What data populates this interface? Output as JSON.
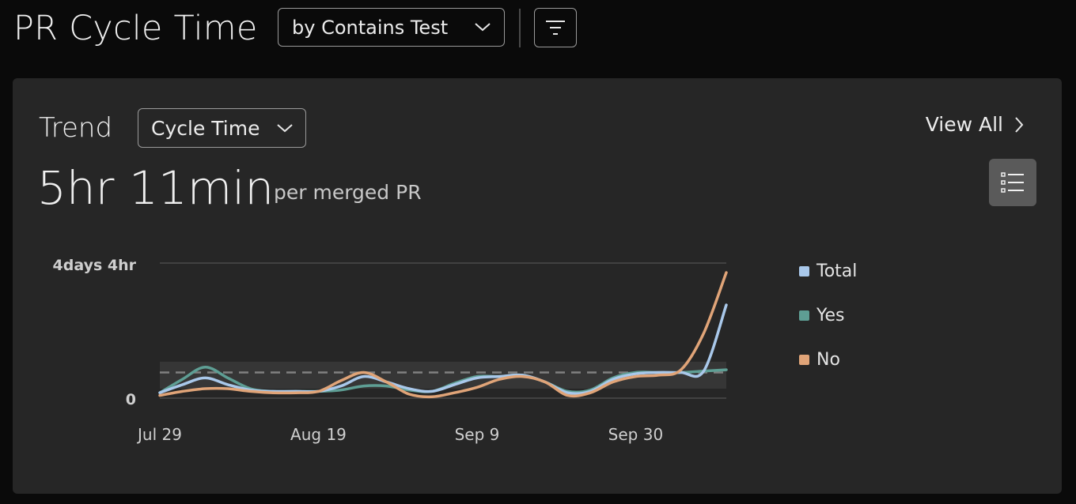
{
  "header": {
    "title": "PR Cycle Time",
    "group_by_label": "by Contains Test"
  },
  "card": {
    "title": "Trend",
    "metric_select_label": "Cycle Time",
    "view_all_label": "View All",
    "value": "5hr 11min",
    "value_unit": "per merged PR"
  },
  "chart_data": {
    "type": "line",
    "y_unit": "hours",
    "ytick_labels": [
      "0",
      "4days 4hr"
    ],
    "ylim": [
      0,
      100
    ],
    "xtick_labels": [
      "Jul 29",
      "Aug 19",
      "Sep 9",
      "Sep 30"
    ],
    "x": [
      "Jul 29",
      "Aug 1",
      "Aug 4",
      "Aug 7",
      "Aug 10",
      "Aug 13",
      "Aug 16",
      "Aug 19",
      "Aug 22",
      "Aug 25",
      "Aug 28",
      "Aug 31",
      "Sep 3",
      "Sep 6",
      "Sep 9",
      "Sep 12",
      "Sep 15",
      "Sep 18",
      "Sep 21",
      "Sep 24",
      "Sep 27",
      "Sep 30",
      "Oct 3",
      "Oct 6",
      "Oct 9",
      "Oct 12"
    ],
    "reference_line": 19,
    "reference_band": [
      7,
      27
    ],
    "series": [
      {
        "name": "Total",
        "color": "#a9c8ea",
        "values": [
          4,
          10,
          15,
          10,
          6,
          5,
          5,
          5,
          9,
          16,
          12,
          7,
          5,
          10,
          15,
          16,
          17,
          12,
          4,
          5,
          14,
          18,
          19,
          19,
          20,
          69
        ]
      },
      {
        "name": "Yes",
        "color": "#5e9e94",
        "values": [
          4,
          14,
          23,
          15,
          7,
          5,
          5,
          5,
          6,
          9,
          9,
          6,
          5,
          11,
          16,
          16,
          17,
          12,
          5,
          6,
          15,
          19,
          19,
          19,
          20,
          21
        ]
      },
      {
        "name": "No",
        "color": "#e0a478",
        "values": [
          2,
          5,
          7,
          7,
          5,
          4,
          4,
          5,
          13,
          19,
          12,
          3,
          1,
          4,
          8,
          14,
          16,
          12,
          2,
          4,
          12,
          16,
          17,
          21,
          48,
          93
        ]
      }
    ],
    "legend_position": "right",
    "grid": false
  },
  "colors": {
    "page_bg": "#0a0a0a",
    "card_bg": "#262626",
    "reference_line": "#808080"
  },
  "icons": {
    "dropdown": "chevron-down-icon",
    "filter": "filter-icon",
    "view_all": "chevron-right-icon",
    "list": "list-icon"
  }
}
